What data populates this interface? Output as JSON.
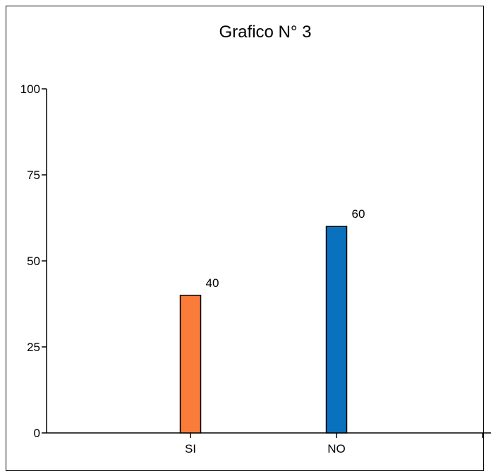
{
  "chart_data": {
    "type": "bar",
    "title": "Grafico N° 3",
    "xlabel": "",
    "ylabel": "",
    "categories": [
      "SI",
      "NO"
    ],
    "values": [
      40,
      60
    ],
    "colors": [
      "#f97c3a",
      "#0a71be"
    ],
    "ylim": [
      0,
      100
    ],
    "yticks": [
      "0",
      "25",
      "50",
      "75",
      "100"
    ],
    "grid": false,
    "legend": "none"
  }
}
